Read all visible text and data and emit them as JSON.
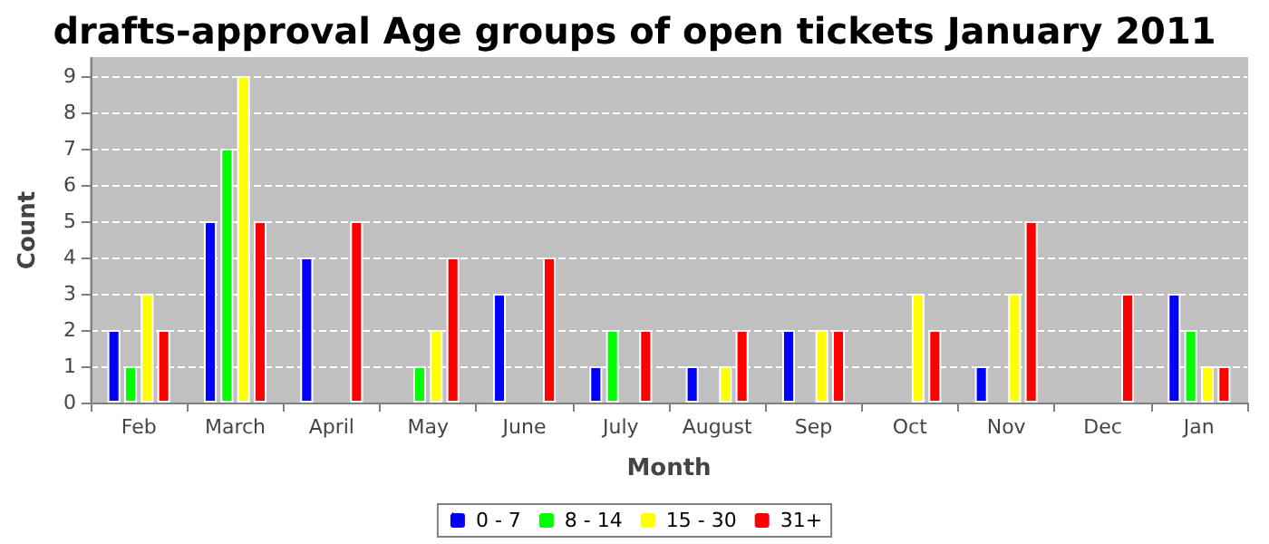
{
  "chart_data": {
    "type": "bar",
    "title": "drafts-approval Age groups of open tickets January 2011",
    "xlabel": "Month",
    "ylabel": "Count",
    "categories": [
      "Feb",
      "March",
      "April",
      "May",
      "June",
      "July",
      "August",
      "Sep",
      "Oct",
      "Nov",
      "Dec",
      "Jan"
    ],
    "series": [
      {
        "name": "0 - 7",
        "color": "#0000ff",
        "values": [
          2,
          5,
          4,
          null,
          3,
          1,
          1,
          2,
          null,
          1,
          null,
          3
        ]
      },
      {
        "name": "8 - 14",
        "color": "#00ff00",
        "values": [
          1,
          7,
          null,
          1,
          null,
          2,
          null,
          null,
          null,
          null,
          null,
          2
        ]
      },
      {
        "name": "15 - 30",
        "color": "#ffff00",
        "values": [
          3,
          9,
          null,
          2,
          null,
          null,
          1,
          2,
          3,
          3,
          null,
          1
        ]
      },
      {
        "name": "31+",
        "color": "#ff0000",
        "values": [
          2,
          5,
          5,
          4,
          4,
          2,
          2,
          2,
          2,
          5,
          3,
          1
        ]
      }
    ],
    "ylim": [
      0,
      9.5
    ],
    "yticks": [
      0,
      1,
      2,
      3,
      4,
      5,
      6,
      7,
      8,
      9
    ],
    "grid": "y",
    "legend": "bottom"
  }
}
